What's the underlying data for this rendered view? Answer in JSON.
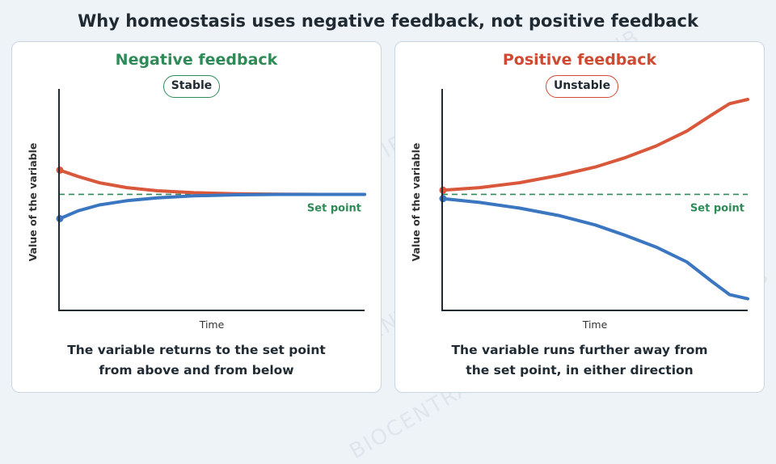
{
  "title": "Why homeostasis uses negative feedback, not positive feedback",
  "watermark": "BIOCENTRAL IB",
  "colors": {
    "negative_title": "#2e8b57",
    "positive_title": "#d04a32",
    "above_line": "#d9573b",
    "below_line": "#3b76c0",
    "set_point": "#2e8b57",
    "axis": "#1f2a33"
  },
  "panels": [
    {
      "title": "Negative feedback",
      "badge": "Stable",
      "caption": [
        "The variable returns to the set point",
        "from above and from below"
      ],
      "chart_data": {
        "type": "line",
        "xlabel": "Time",
        "ylabel": "Value of the variable",
        "set_point_label": "Set point",
        "set_point": 0,
        "ylim": [
          -5.5,
          5
        ],
        "series": [
          {
            "color_key": "above_line",
            "x": [
              0,
              0.06,
              0.13,
              0.22,
              0.32,
              0.44,
              0.58,
              0.72,
              0.86,
              1.0
            ],
            "y": [
              1.15,
              0.85,
              0.55,
              0.32,
              0.17,
              0.08,
              0.03,
              0.01,
              0,
              0
            ]
          },
          {
            "color_key": "below_line",
            "x": [
              0,
              0.06,
              0.13,
              0.22,
              0.32,
              0.44,
              0.58,
              0.72,
              0.86,
              1.0
            ],
            "y": [
              -1.15,
              -0.78,
              -0.5,
              -0.3,
              -0.16,
              -0.07,
              -0.02,
              0,
              0,
              0
            ]
          }
        ]
      }
    },
    {
      "title": "Positive feedback",
      "badge": "Unstable",
      "caption": [
        "The variable runs further away from",
        "the set point, in either direction"
      ],
      "chart_data": {
        "type": "line",
        "xlabel": "Time",
        "ylabel": "Value of the variable",
        "set_point_label": "Set point",
        "set_point": 0,
        "ylim": [
          -5.5,
          5
        ],
        "series": [
          {
            "color_key": "above_line",
            "x": [
              0,
              0.12,
              0.25,
              0.38,
              0.5,
              0.6,
              0.7,
              0.8,
              0.88,
              0.94,
              1.0
            ],
            "y": [
              0.2,
              0.32,
              0.55,
              0.9,
              1.3,
              1.75,
              2.3,
              3.0,
              3.75,
              4.3,
              4.5
            ]
          },
          {
            "color_key": "below_line",
            "x": [
              0,
              0.12,
              0.25,
              0.38,
              0.5,
              0.6,
              0.7,
              0.8,
              0.88,
              0.94,
              1.0
            ],
            "y": [
              -0.2,
              -0.38,
              -0.65,
              -1.0,
              -1.45,
              -1.95,
              -2.5,
              -3.2,
              -4.1,
              -4.75,
              -4.95
            ]
          }
        ]
      }
    }
  ]
}
